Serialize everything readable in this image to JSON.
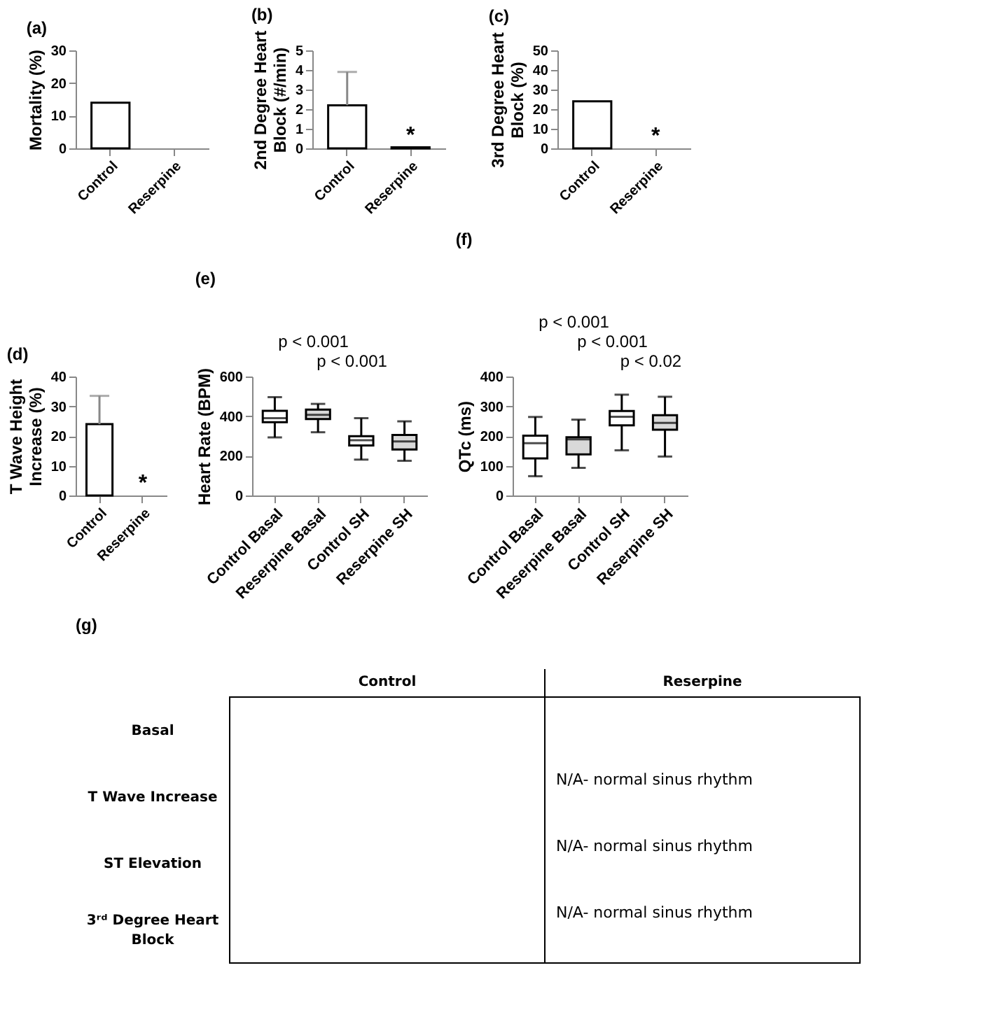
{
  "chart_data": [
    {
      "type": "bar",
      "title": "(a)",
      "ylabel": "Mortality (%)",
      "categories": [
        "Control",
        "Reserpine"
      ],
      "values": [
        14,
        0
      ],
      "colors": [
        "#ffffff",
        "#ffffff"
      ],
      "ylim": [
        0,
        30
      ],
      "yticks": [
        0,
        10,
        20,
        30
      ]
    },
    {
      "type": "bar",
      "title": "(b)",
      "ylabel": "2nd Degree Heart Block (#/min)",
      "categories": [
        "Control",
        "Reserpine"
      ],
      "values": [
        2.2,
        0.05
      ],
      "errors": [
        [
          2.2,
          3.9
        ],
        null
      ],
      "colors": [
        "#ffffff",
        "#ffffff"
      ],
      "ylim": [
        0,
        5
      ],
      "yticks": [
        0,
        1,
        2,
        3,
        4,
        5
      ],
      "annotations": [
        "*"
      ]
    },
    {
      "type": "bar",
      "title": "(c)",
      "ylabel": "3rd Degree Heart Block (%)",
      "categories": [
        "Control",
        "Reserpine"
      ],
      "values": [
        24,
        0
      ],
      "colors": [
        "#ffffff",
        "#ffffff"
      ],
      "ylim": [
        0,
        50
      ],
      "yticks": [
        0,
        10,
        20,
        30,
        40,
        50
      ],
      "annotations": [
        "*"
      ]
    },
    {
      "type": "bar",
      "title": "(d)",
      "ylabel": "T Wave Height Increase (%)",
      "categories": [
        "Control",
        "Reserpine"
      ],
      "values": [
        24,
        0
      ],
      "errors": [
        [
          24,
          33.5
        ],
        null
      ],
      "colors": [
        "#ffffff",
        "#ffffff"
      ],
      "ylim": [
        0,
        40
      ],
      "yticks": [
        0,
        10,
        20,
        30,
        40
      ],
      "annotations": [
        "*"
      ]
    },
    {
      "type": "box",
      "title": "(e)",
      "ylabel": "Heart Rate (BPM)",
      "categories": [
        "Control Basal",
        "Reserpine Basal",
        "Control SH",
        "Reserpine SH"
      ],
      "colors": [
        "#ffffff",
        "#d9d9d9",
        "#ffffff",
        "#d9d9d9"
      ],
      "boxes": [
        {
          "low": 293,
          "q1": 370,
          "median": 390,
          "q3": 427,
          "high": 496
        },
        {
          "low": 319,
          "q1": 386,
          "median": 407,
          "q3": 433,
          "high": 462
        },
        {
          "low": 181,
          "q1": 252,
          "median": 279,
          "q3": 299,
          "high": 390
        },
        {
          "low": 175,
          "q1": 232,
          "median": 273,
          "q3": 305,
          "high": 374
        }
      ],
      "ylim": [
        0,
        600
      ],
      "yticks": [
        0,
        200,
        400,
        600
      ],
      "annotations": [
        "p < 0.001",
        "p < 0.001"
      ]
    },
    {
      "type": "box",
      "title": "(f)",
      "ylabel": "QTc (ms)",
      "categories": [
        "Control Basal",
        "Reserpine Basal",
        "Control SH",
        "Reserpine SH"
      ],
      "colors": [
        "#ffffff",
        "#d9d9d9",
        "#ffffff",
        "#d9d9d9"
      ],
      "boxes": [
        {
          "low": 65,
          "q1": 125,
          "median": 176,
          "q3": 201,
          "high": 264
        },
        {
          "low": 93,
          "q1": 138,
          "median": 189,
          "q3": 196,
          "high": 255
        },
        {
          "low": 152,
          "q1": 236,
          "median": 265,
          "q3": 284,
          "high": 339
        },
        {
          "low": 131,
          "q1": 221,
          "median": 244,
          "q3": 270,
          "high": 332
        }
      ],
      "ylim": [
        0,
        400
      ],
      "yticks": [
        0,
        100,
        200,
        300,
        400
      ],
      "annotations": [
        "p < 0.001",
        "p < 0.001",
        "p < 0.02"
      ]
    },
    {
      "type": "other",
      "title": "(g)",
      "categories": [
        "Control",
        "Reserpine"
      ],
      "y_categories": [
        "Basal",
        "T Wave Increase",
        "ST Elevation",
        "3ʳᵈ Degree Heart Block"
      ],
      "annotations": [
        "N/A- normal sinus rhythm",
        "N/A- normal sinus rhythm",
        "N/A- normal sinus rhythm"
      ]
    }
  ]
}
